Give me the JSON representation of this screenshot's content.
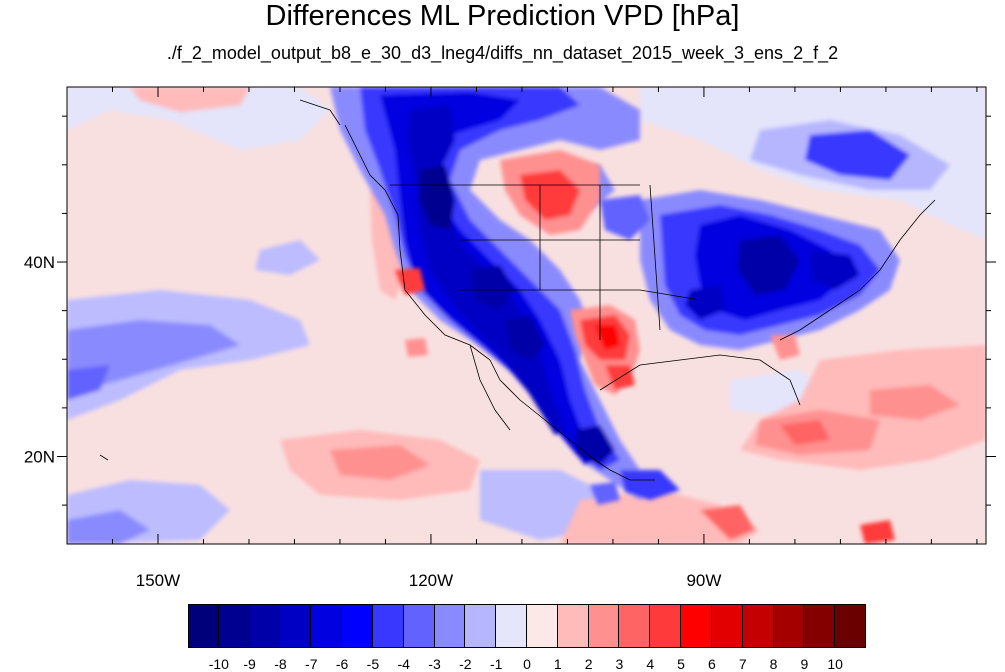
{
  "title": "Differences ML Prediction VPD [hPa]",
  "subtitle": "./f_2_model_output_b8_e_30_d3_lneg4/diffs_nn_dataset_2015_week_3_ens_2_f_2",
  "map": {
    "lon_range": [
      -160,
      -59
    ],
    "lat_range": [
      11,
      58
    ],
    "lon_ticks": [
      {
        "value": -150,
        "label": "150W"
      },
      {
        "value": -120,
        "label": "120W"
      },
      {
        "value": -90,
        "label": "90W"
      }
    ],
    "lat_ticks": [
      {
        "value": 40,
        "label": "40N"
      },
      {
        "value": 20,
        "label": "20N"
      }
    ]
  },
  "colorbar": {
    "labels": [
      "-10",
      "-9",
      "-8",
      "-7",
      "-6",
      "-5",
      "-4",
      "-3",
      "-2",
      "-1",
      "0",
      "1",
      "2",
      "3",
      "4",
      "5",
      "6",
      "7",
      "8",
      "9",
      "10"
    ],
    "colors": [
      "#00007a",
      "#000090",
      "#0000a8",
      "#0000c4",
      "#0000e0",
      "#0000ff",
      "#3838ff",
      "#6262ff",
      "#8a8aff",
      "#b6b6ff",
      "#e6e6fb",
      "#fde8e8",
      "#ffbaba",
      "#ff9090",
      "#ff6464",
      "#ff3a3a",
      "#ff0000",
      "#e20000",
      "#c40000",
      "#a40000",
      "#840000",
      "#6a0000"
    ]
  },
  "colors": {
    "ocean_background": "#f9e0e0",
    "land_blue": "#1818f0",
    "ocean_blue": "#8a8aff",
    "ocean_red": "#ff9898",
    "land_red": "#ff3a3a"
  }
}
